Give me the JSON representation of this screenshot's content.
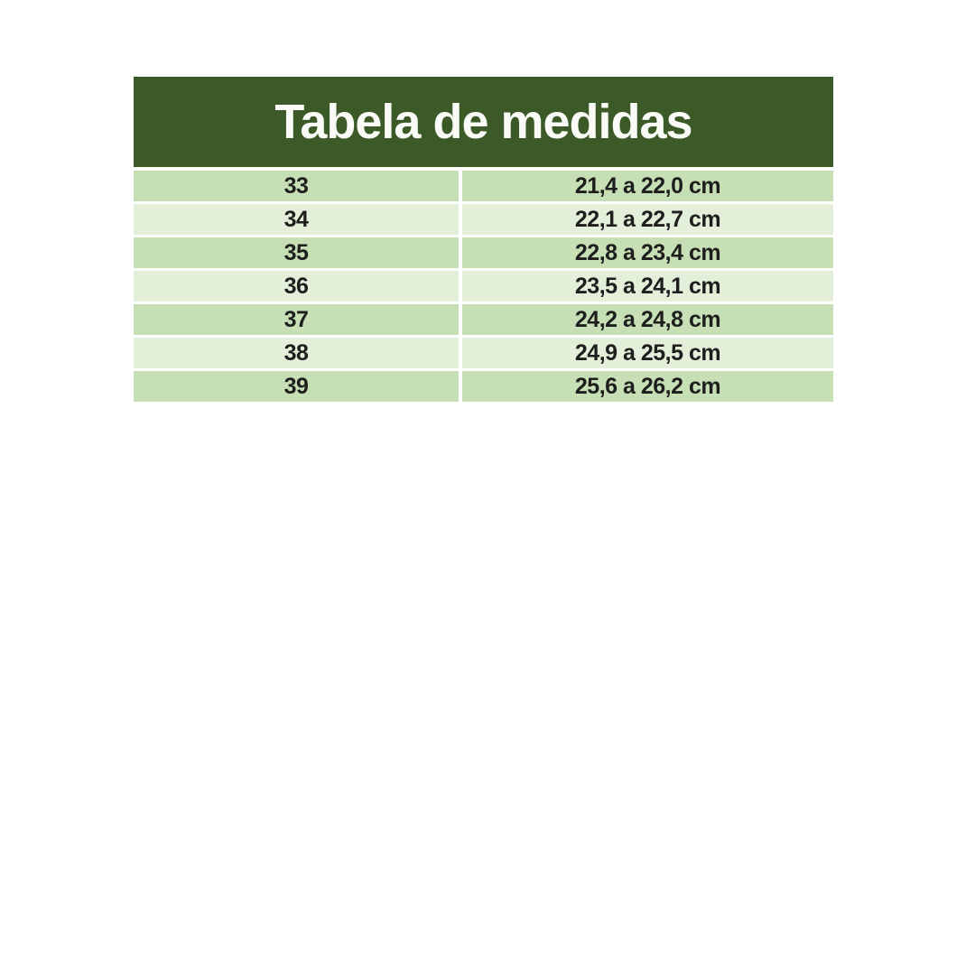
{
  "page": {
    "background": "#ffffff"
  },
  "table": {
    "title": "Tabela de medidas",
    "colors": {
      "header_bg": "#3b5a28",
      "title_color": "#fafaf6",
      "row_dark": "#c6dfb4",
      "row_light": "#e4efda",
      "text_color": "#1e1e1e"
    },
    "columns": [
      "size",
      "range"
    ],
    "rows": [
      {
        "size": "33",
        "range": "21,4 a 22,0 cm"
      },
      {
        "size": "34",
        "range": "22,1 a 22,7 cm"
      },
      {
        "size": "35",
        "range": "22,8 a 23,4 cm"
      },
      {
        "size": "36",
        "range": "23,5 a 24,1 cm"
      },
      {
        "size": "37",
        "range": "24,2 a 24,8 cm"
      },
      {
        "size": "38",
        "range": "24,9 a 25,5 cm"
      },
      {
        "size": "39",
        "range": "25,6 a 26,2 cm"
      }
    ]
  }
}
